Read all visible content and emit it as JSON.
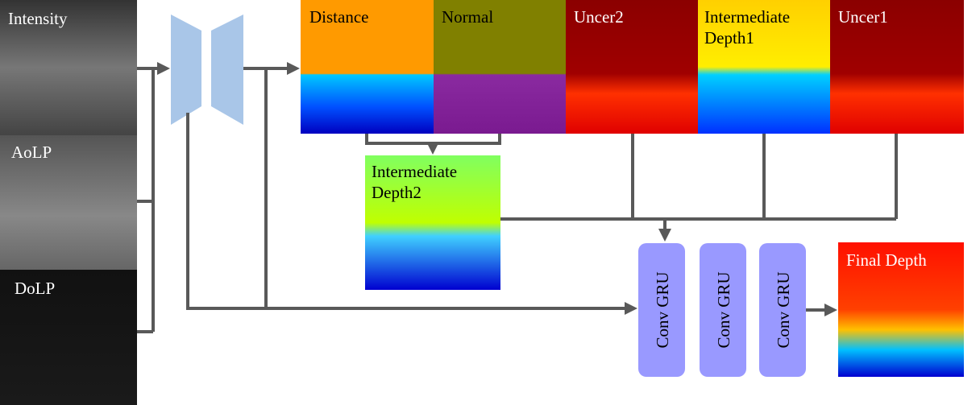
{
  "inputs": [
    {
      "label": "Intensity"
    },
    {
      "label": "AoLP"
    },
    {
      "label": "DoLP"
    }
  ],
  "outputs": [
    {
      "label": [
        "Distance"
      ]
    },
    {
      "label": [
        "Normal"
      ]
    },
    {
      "label": [
        "Uncer2"
      ]
    },
    {
      "label": [
        "Intermediate",
        "Depth1"
      ]
    },
    {
      "label": [
        "Uncer1"
      ]
    }
  ],
  "intermediate_depth2": {
    "label": [
      "Intermediate",
      "Depth2"
    ]
  },
  "conv_gru": [
    "Conv GRU",
    "Conv GRU",
    "Conv GRU"
  ],
  "final_depth": {
    "label": "Final Depth"
  }
}
